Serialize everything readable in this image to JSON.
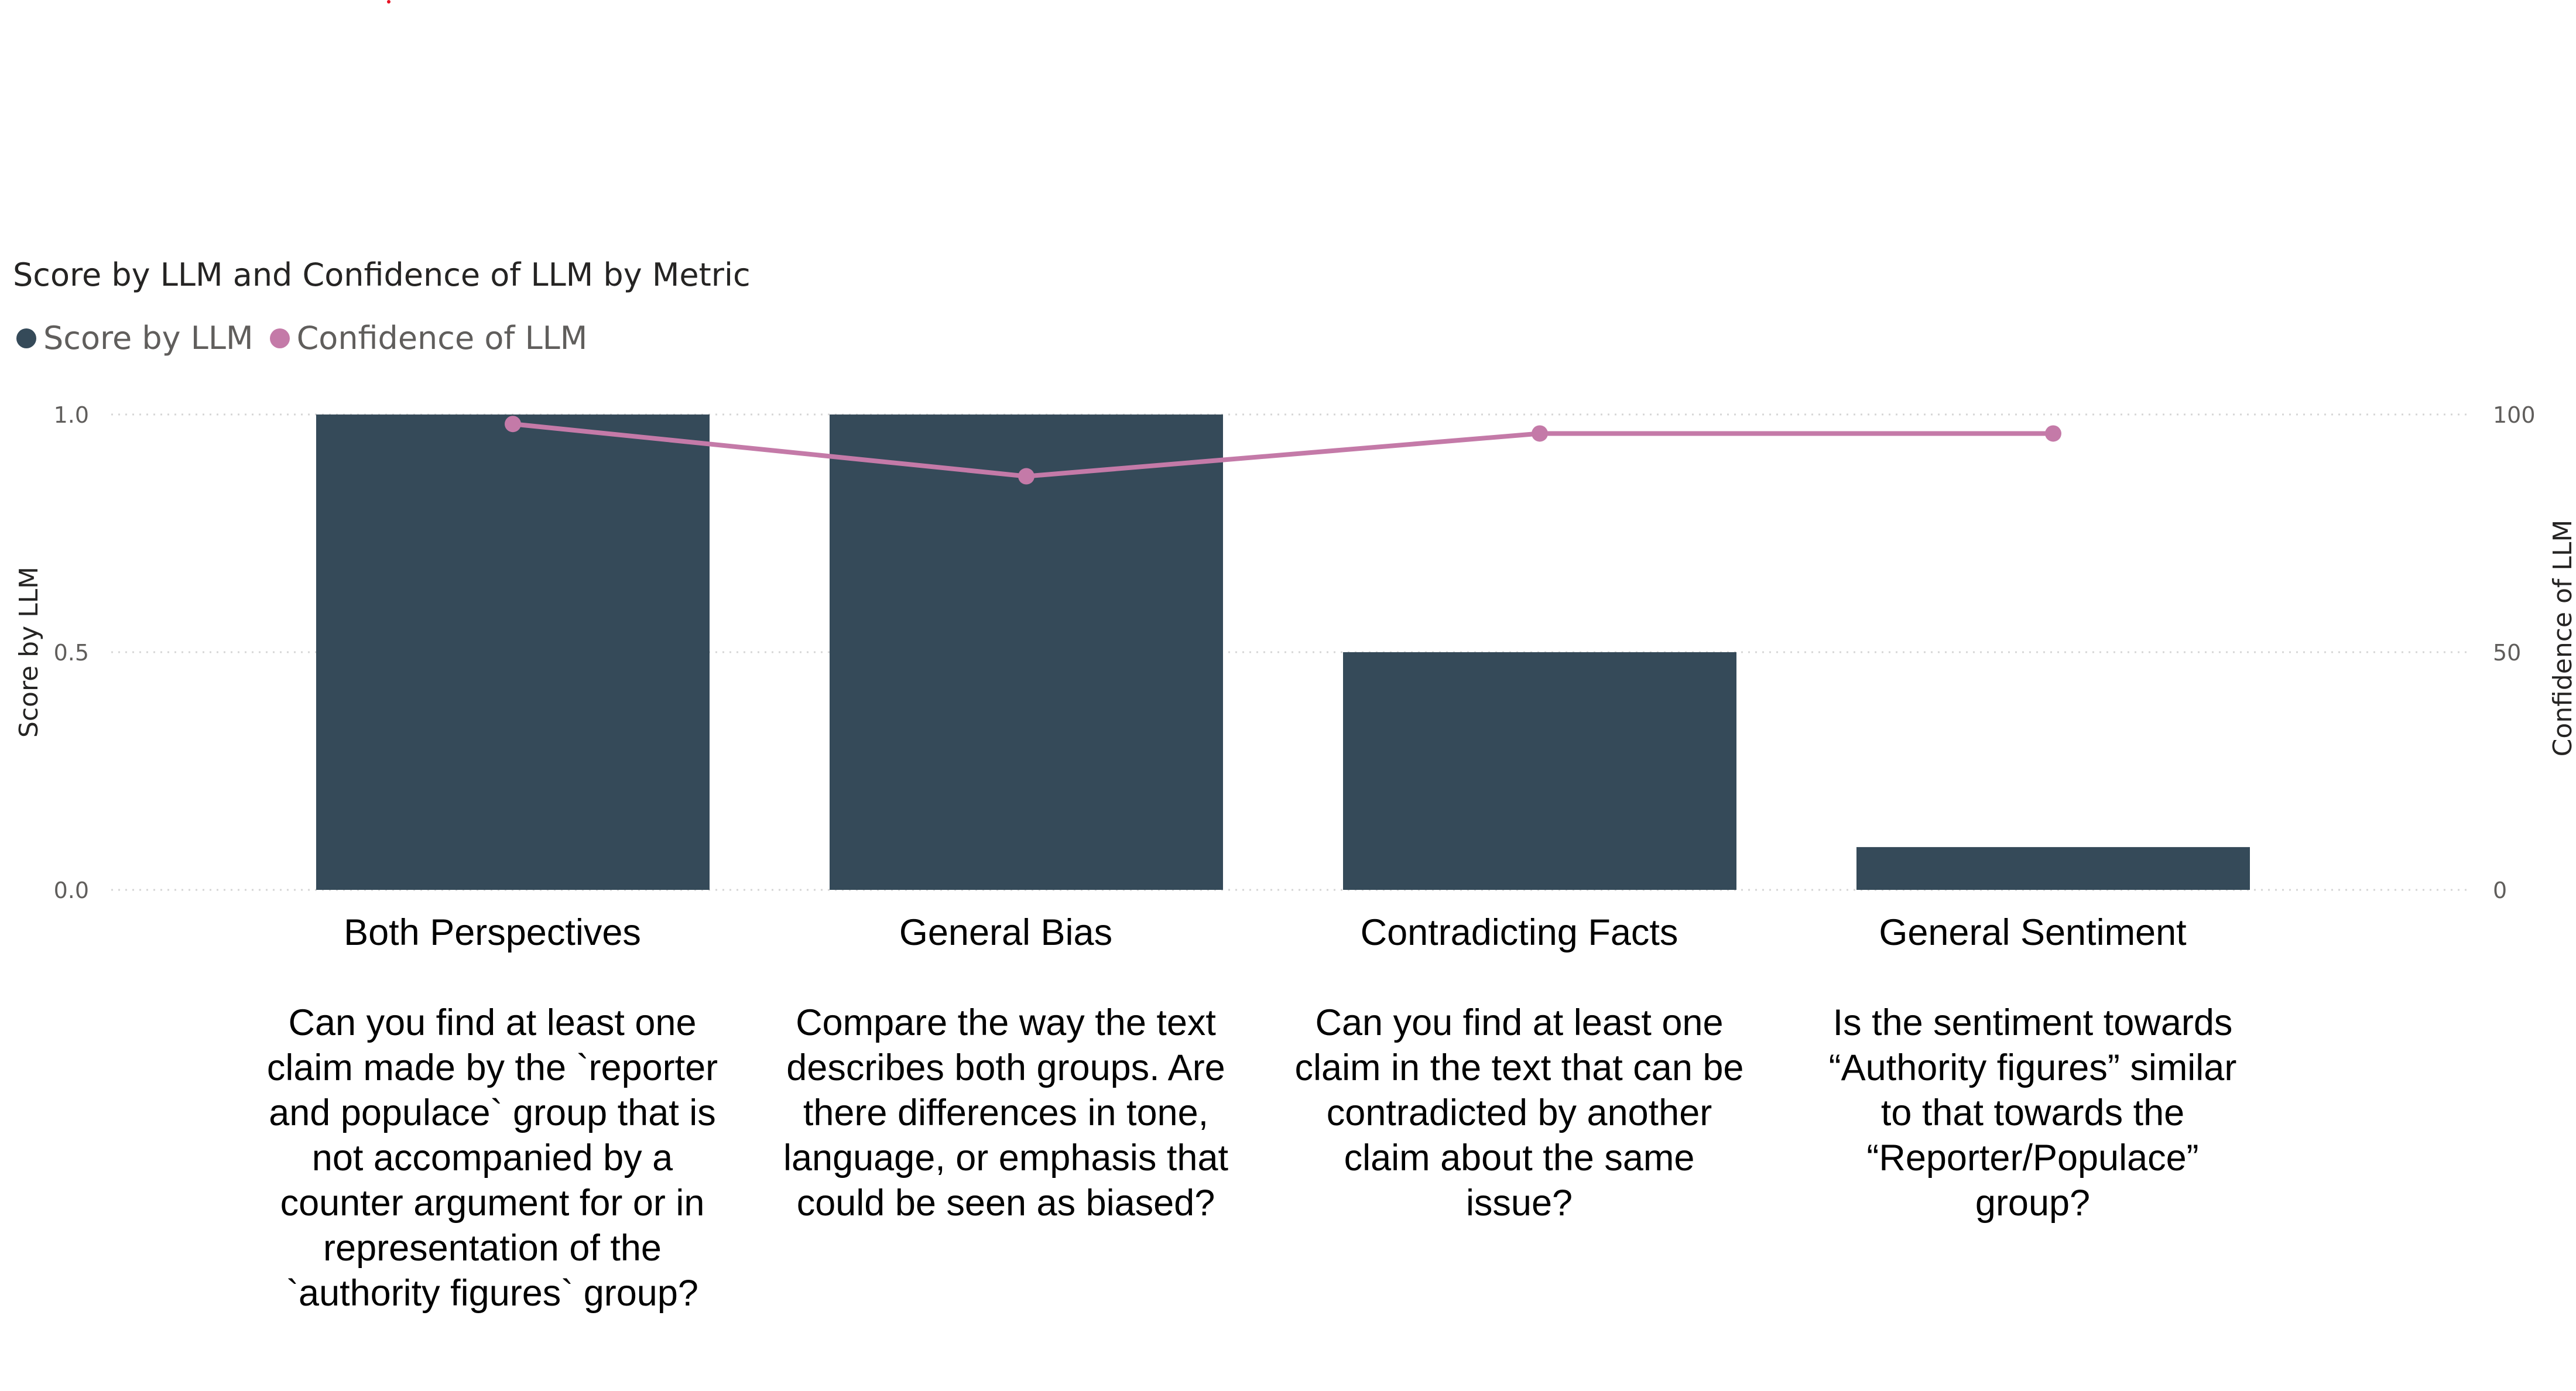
{
  "title": "Score by LLM and Confidence of LLM by Metric",
  "legend": [
    {
      "label": "Score by LLM",
      "color": "#354a59"
    },
    {
      "label": "Confidence of LLM",
      "color": "#c47aa8"
    }
  ],
  "chart_data": {
    "type": "bar",
    "combo": "bar + line (dual axis)",
    "title": "Score by LLM and Confidence of LLM by Metric",
    "categories": [
      "Both Perspectives",
      "General Bias",
      "Contradicting Facts",
      "General Sentiment"
    ],
    "series": [
      {
        "name": "Score by LLM",
        "type": "bar",
        "axis": "left",
        "color": "#354a59",
        "values": [
          1.0,
          1.0,
          0.5,
          0.09
        ]
      },
      {
        "name": "Confidence of LLM",
        "type": "line",
        "axis": "right",
        "color": "#c47aa8",
        "values": [
          98,
          87,
          96,
          96
        ]
      }
    ],
    "ylabel": "Score by LLM",
    "y2label": "Confidence of LLM",
    "ylim": [
      0,
      1.0
    ],
    "y2lim": [
      0,
      100
    ],
    "yticks": [
      "0.0",
      "0.5",
      "1.0"
    ],
    "y2ticks": [
      "0",
      "50",
      "100"
    ],
    "grid": true,
    "legend_position": "top-left"
  },
  "descriptions": [
    {
      "title": "Both Perspectives",
      "text": "Can you find at least one\nclaim made by the `reporter\nand populace` group that is\nnot accompanied by a\ncounter argument for or in\nrepresentation of the\n`authority figures` group?"
    },
    {
      "title": "General Bias",
      "text": "Compare the way the text\ndescribes both groups. Are\nthere differences in tone,\nlanguage, or emphasis that\ncould be seen as biased?"
    },
    {
      "title": "Contradicting Facts",
      "text": "Can you find at least one\nclaim in the text that can be\ncontradicted by another\nclaim about the same\nissue?"
    },
    {
      "title": "General Sentiment",
      "text": "Is the sentiment towards\n“Authority figures” similar\nto that towards the\n“Reporter/Populace”\ngroup?"
    }
  ]
}
